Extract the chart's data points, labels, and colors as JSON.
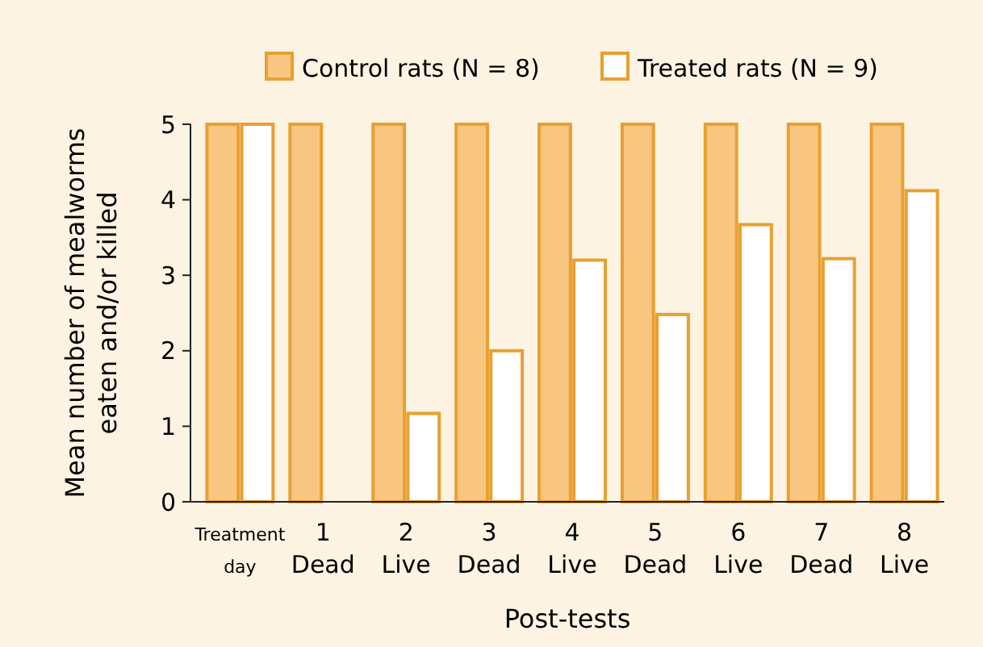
{
  "chart_data": {
    "type": "bar",
    "categories": [
      "Treatment\nday",
      "1\nDead",
      "2\nLive",
      "3\nDead",
      "4\nLive",
      "5\nDead",
      "6\nLive",
      "7\nDead",
      "8\nLive"
    ],
    "series": [
      {
        "name": "Control rats (N = 8)",
        "color": "#f8c680",
        "values": [
          5,
          5,
          5,
          5,
          5,
          5,
          5,
          5,
          5
        ]
      },
      {
        "name": "Treated rats (N = 9)",
        "color": "#ffffff",
        "values": [
          5,
          0,
          1.17,
          2,
          3.2,
          2.48,
          3.67,
          3.22,
          4.12
        ]
      }
    ],
    "ylim": [
      0,
      5
    ],
    "yticks": [
      0,
      1,
      2,
      3,
      4,
      5
    ],
    "xlabel": "Post-tests",
    "ylabel": "Mean number of mealworms\neaten and/or killed",
    "legend": "top",
    "grid": false
  }
}
